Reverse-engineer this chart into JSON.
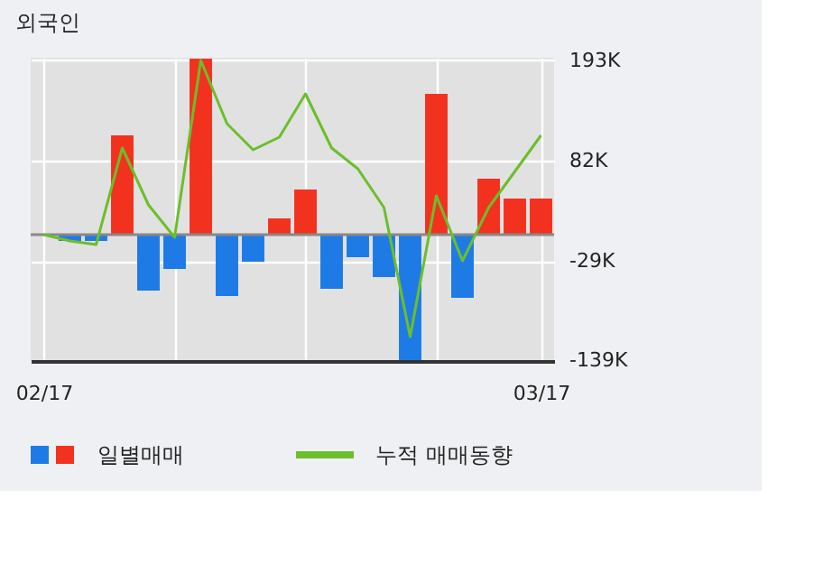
{
  "chart_data": {
    "type": "bar",
    "title": "외국인",
    "categories": [
      "02/17",
      null,
      null,
      null,
      null,
      null,
      null,
      null,
      null,
      null,
      null,
      null,
      null,
      null,
      null,
      null,
      null,
      null,
      null,
      "03/17"
    ],
    "series": [
      {
        "name": "일별매매",
        "type": "bar",
        "colors": [
          "#1e7be6",
          "#1e7be6",
          "#1e7be6",
          "#f2321e",
          "#1e7be6",
          "#1e7be6",
          "#f2321e",
          "#1e7be6",
          "#1e7be6",
          "#f2321e",
          "#f2321e",
          "#1e7be6",
          "#1e7be6",
          "#1e7be6",
          "#1e7be6",
          "#f2321e",
          "#1e7be6",
          "#f2321e",
          "#f2321e",
          "#f2321e"
        ],
        "values": [
          0,
          -7,
          -7,
          110,
          -62,
          -38,
          195,
          -68,
          -30,
          18,
          50,
          -60,
          -25,
          -47,
          -139,
          156,
          -70,
          62,
          40,
          40
        ]
      },
      {
        "name": "누적 매매동향",
        "type": "line",
        "color": "#6abf2a",
        "values": [
          0,
          -7,
          -11,
          96,
          33,
          -3,
          193,
          123,
          94,
          108,
          156,
          96,
          73,
          30,
          -113,
          43,
          -29,
          30,
          70,
          110
        ]
      }
    ],
    "ylim": [
      -140,
      196
    ],
    "yticks": [
      {
        "value": 193,
        "label": "193K"
      },
      {
        "value": 82,
        "label": "82K"
      },
      {
        "value": -29,
        "label": "-29K"
      },
      {
        "value": -139,
        "label": "-139K"
      }
    ],
    "ref_lines": [
      {
        "axis": "y",
        "value": 0,
        "label": null,
        "color": "#888888"
      }
    ],
    "grid": true,
    "legend": "bottom"
  }
}
